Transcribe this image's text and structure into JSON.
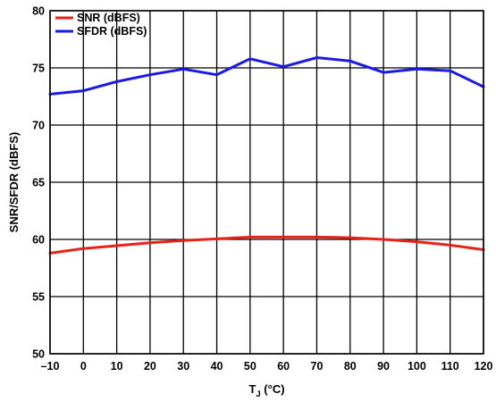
{
  "chart_data": {
    "type": "line",
    "xlabel_main": "T",
    "xlabel_sub": "J",
    "xlabel_unit": " (°C)",
    "ylabel": "SNR/SFDR (dBFS)",
    "xlim": [
      -10,
      120
    ],
    "ylim": [
      50,
      80
    ],
    "x_ticks": [
      -10,
      0,
      10,
      20,
      30,
      40,
      50,
      60,
      70,
      80,
      90,
      100,
      110,
      120
    ],
    "x_tick_labels": [
      "–10",
      "0",
      "10",
      "20",
      "30",
      "40",
      "50",
      "60",
      "70",
      "80",
      "90",
      "100",
      "110",
      "120"
    ],
    "y_ticks": [
      50,
      55,
      60,
      65,
      70,
      75,
      80
    ],
    "y_tick_labels": [
      "50",
      "55",
      "60",
      "65",
      "70",
      "75",
      "80"
    ],
    "grid": true,
    "legend_position": "top-left",
    "x": [
      -10,
      0,
      10,
      20,
      30,
      40,
      50,
      60,
      70,
      80,
      90,
      100,
      110,
      120
    ],
    "series": [
      {
        "name": "SNR (dBFS)",
        "color": "#e8211a",
        "values": [
          58.8,
          59.2,
          59.45,
          59.7,
          59.9,
          60.05,
          60.2,
          60.2,
          60.2,
          60.15,
          60.0,
          59.8,
          59.5,
          59.1
        ]
      },
      {
        "name": "SFDR (dBFS)",
        "color": "#1a1ae6",
        "values": [
          72.7,
          73.0,
          73.8,
          74.4,
          74.9,
          74.4,
          75.8,
          75.1,
          75.9,
          75.6,
          74.6,
          74.9,
          74.75,
          73.35
        ]
      }
    ]
  }
}
